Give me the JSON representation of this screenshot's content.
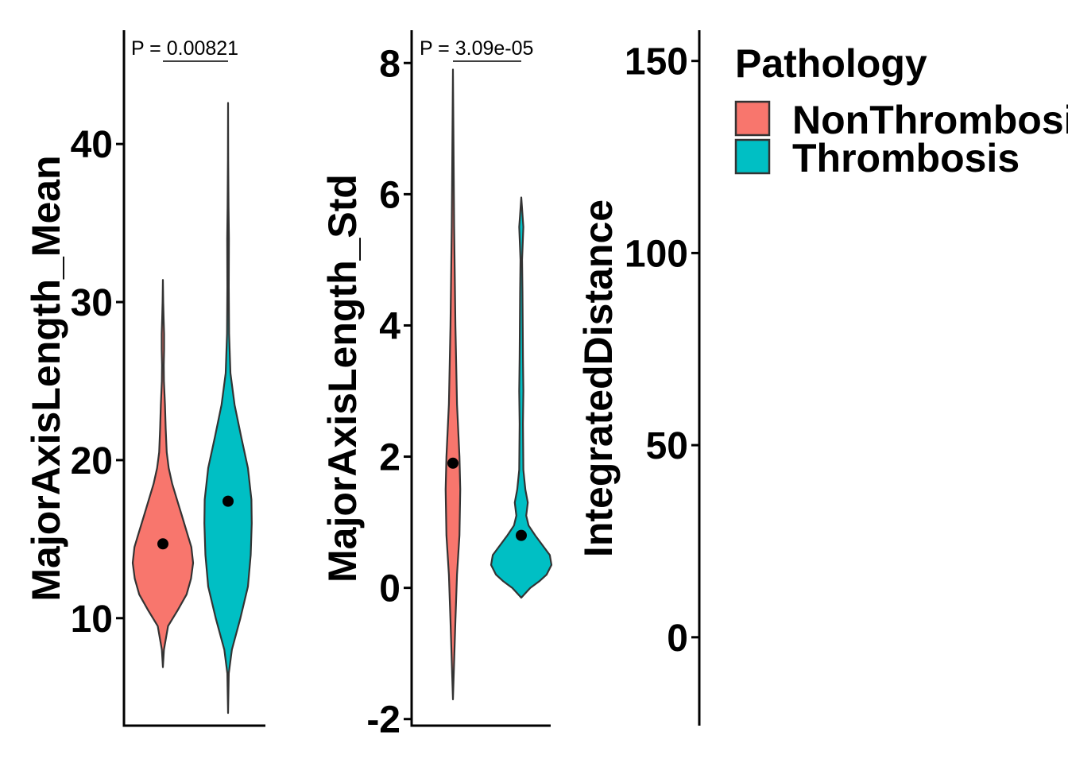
{
  "legend": {
    "title": "Pathology",
    "items": [
      {
        "label": "NonThrombosis",
        "color": "#F8766D"
      },
      {
        "label": "Thrombosis",
        "color": "#00BFC4"
      }
    ]
  },
  "chart_data": [
    {
      "type": "violin",
      "ylabel": "MajorAxisLength_Mean",
      "xlabel": "",
      "ylim": [
        3.2,
        47.2
      ],
      "yticks": [
        10,
        20,
        30,
        40
      ],
      "ytick_labels": [
        "10",
        "20",
        "30",
        "40"
      ],
      "annotation": "P = 0.00821",
      "series": [
        {
          "name": "NonThrombosis",
          "color": "#F8766D",
          "mean": 14.7,
          "min": 6.9,
          "max": 31.4,
          "profile": [
            [
              6.9,
              0
            ],
            [
              8.0,
              0.3
            ],
            [
              9.5,
              1.5
            ],
            [
              10.5,
              4.3
            ],
            [
              11.5,
              6.9
            ],
            [
              12.5,
              8.2
            ],
            [
              13.5,
              8.8
            ],
            [
              14.5,
              8.3
            ],
            [
              15.5,
              6.9
            ],
            [
              16.5,
              5.5
            ],
            [
              17.5,
              4.1
            ],
            [
              18.5,
              2.7
            ],
            [
              19.5,
              1.7
            ],
            [
              20.5,
              1.1
            ],
            [
              22,
              0.8
            ],
            [
              23.5,
              0.6
            ],
            [
              25,
              0.3
            ],
            [
              26,
              0.25
            ],
            [
              27,
              0.35
            ],
            [
              28,
              0.35
            ],
            [
              29,
              0.2
            ],
            [
              30,
              0.1
            ],
            [
              31.4,
              0
            ]
          ]
        },
        {
          "name": "Thrombosis",
          "color": "#00BFC4",
          "mean": 17.4,
          "min": 4.0,
          "max": 42.6,
          "profile": [
            [
              4.0,
              0
            ],
            [
              6.5,
              0.2
            ],
            [
              8.0,
              1.1
            ],
            [
              10.0,
              3.6
            ],
            [
              12.0,
              5.8
            ],
            [
              14.0,
              6.6
            ],
            [
              16.0,
              6.9
            ],
            [
              17.5,
              6.8
            ],
            [
              19.5,
              5.8
            ],
            [
              21.5,
              3.8
            ],
            [
              23.5,
              1.9
            ],
            [
              25.5,
              0.7
            ],
            [
              28,
              0.3
            ],
            [
              31,
              0.2
            ],
            [
              34,
              0.25
            ],
            [
              36,
              0.15
            ],
            [
              39,
              0.05
            ],
            [
              42.6,
              0
            ]
          ]
        }
      ]
    },
    {
      "type": "violin",
      "ylabel": "MajorAxisLength_Std",
      "xlabel": "",
      "ylim": [
        -2.1,
        8.5
      ],
      "yticks": [
        -2,
        0,
        2,
        4,
        6,
        8
      ],
      "ytick_labels": [
        "-2",
        "0",
        "2",
        "4",
        "6",
        "8"
      ],
      "annotation": "P = 3.09e-05",
      "series": [
        {
          "name": "NonThrombosis",
          "color": "#F8766D",
          "mean": 1.9,
          "min": -1.7,
          "max": 7.9,
          "profile": [
            [
              -1.7,
              0
            ],
            [
              -0.5,
              0.3
            ],
            [
              0.2,
              0.5
            ],
            [
              0.8,
              0.8
            ],
            [
              1.5,
              0.9
            ],
            [
              2.0,
              0.8
            ],
            [
              2.8,
              0.5
            ],
            [
              4.0,
              0.3
            ],
            [
              5.5,
              0.15
            ],
            [
              7.9,
              0
            ]
          ]
        },
        {
          "name": "Thrombosis",
          "color": "#00BFC4",
          "mean": 0.8,
          "min": -0.15,
          "max": 5.95,
          "profile": [
            [
              -0.15,
              0
            ],
            [
              0.0,
              1.1
            ],
            [
              0.1,
              2.2
            ],
            [
              0.2,
              3.1
            ],
            [
              0.35,
              3.7
            ],
            [
              0.5,
              3.5
            ],
            [
              0.65,
              2.6
            ],
            [
              0.8,
              1.7
            ],
            [
              0.95,
              0.9
            ],
            [
              1.1,
              0.6
            ],
            [
              1.3,
              0.8
            ],
            [
              1.5,
              0.5
            ],
            [
              1.8,
              0.25
            ],
            [
              2.5,
              0.2
            ],
            [
              3.0,
              0.25
            ],
            [
              3.5,
              0.2
            ],
            [
              4.5,
              0.15
            ],
            [
              5.0,
              0.1
            ],
            [
              5.5,
              0.25
            ],
            [
              5.95,
              0
            ]
          ]
        }
      ]
    },
    {
      "type": "violin",
      "ylabel": "IntegratedDistance",
      "xlabel": "",
      "ylim": [
        -23,
        158
      ],
      "yticks": [
        0,
        50,
        100,
        150
      ],
      "ytick_labels": [
        "0",
        "50",
        "100",
        "150"
      ],
      "annotation": "",
      "series": []
    }
  ]
}
